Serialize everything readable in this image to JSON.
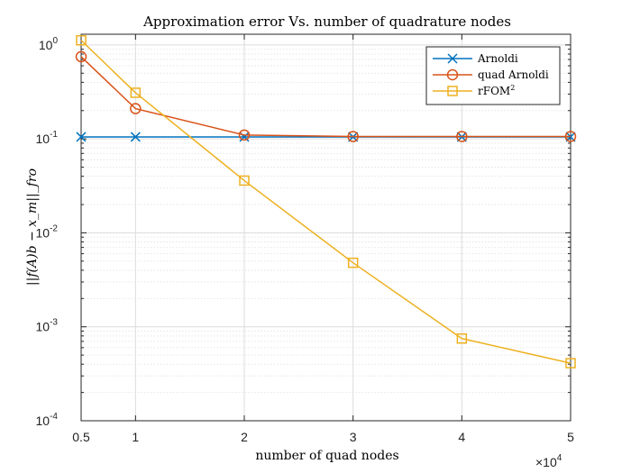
{
  "chart_data": {
    "type": "line",
    "title": "Approximation error Vs. number of quadrature nodes",
    "xlabel": "number of quad nodes",
    "ylabel": "||f(A)b − x_m||_fro",
    "x_multiplier_label": "×10",
    "x_multiplier_exponent": "4",
    "yscale": "log",
    "xlim": [
      0.5,
      5
    ],
    "ylim": [
      0.0001,
      1.3
    ],
    "grid": true,
    "legend_position": "top-right",
    "x_ticks": [
      {
        "value": 0.5,
        "label": "0.5"
      },
      {
        "value": 1,
        "label": "1"
      },
      {
        "value": 2,
        "label": "2"
      },
      {
        "value": 3,
        "label": "3"
      },
      {
        "value": 4,
        "label": "4"
      },
      {
        "value": 5,
        "label": "5"
      }
    ],
    "y_ticks": [
      {
        "value": 0.0001,
        "base": "10",
        "exp": "-4"
      },
      {
        "value": 0.001,
        "base": "10",
        "exp": "-3"
      },
      {
        "value": 0.01,
        "base": "10",
        "exp": "-2"
      },
      {
        "value": 0.1,
        "base": "10",
        "exp": "-1"
      },
      {
        "value": 1,
        "base": "10",
        "exp": "0"
      }
    ],
    "x": [
      0.5,
      1,
      2,
      3,
      4,
      5
    ],
    "series": [
      {
        "name": "Arnoldi",
        "color": "#0072BD",
        "marker": "x",
        "values": [
          0.105,
          0.105,
          0.105,
          0.105,
          0.105,
          0.105
        ]
      },
      {
        "name": "quad Arnoldi",
        "color": "#D95319",
        "marker": "circle",
        "values": [
          0.75,
          0.21,
          0.11,
          0.106,
          0.106,
          0.106
        ]
      },
      {
        "name": "rFOM",
        "name_superscript": "2",
        "color": "#EDB120",
        "marker": "square",
        "values": [
          1.12,
          0.31,
          0.036,
          0.0048,
          0.00075,
          0.00041
        ]
      }
    ]
  }
}
